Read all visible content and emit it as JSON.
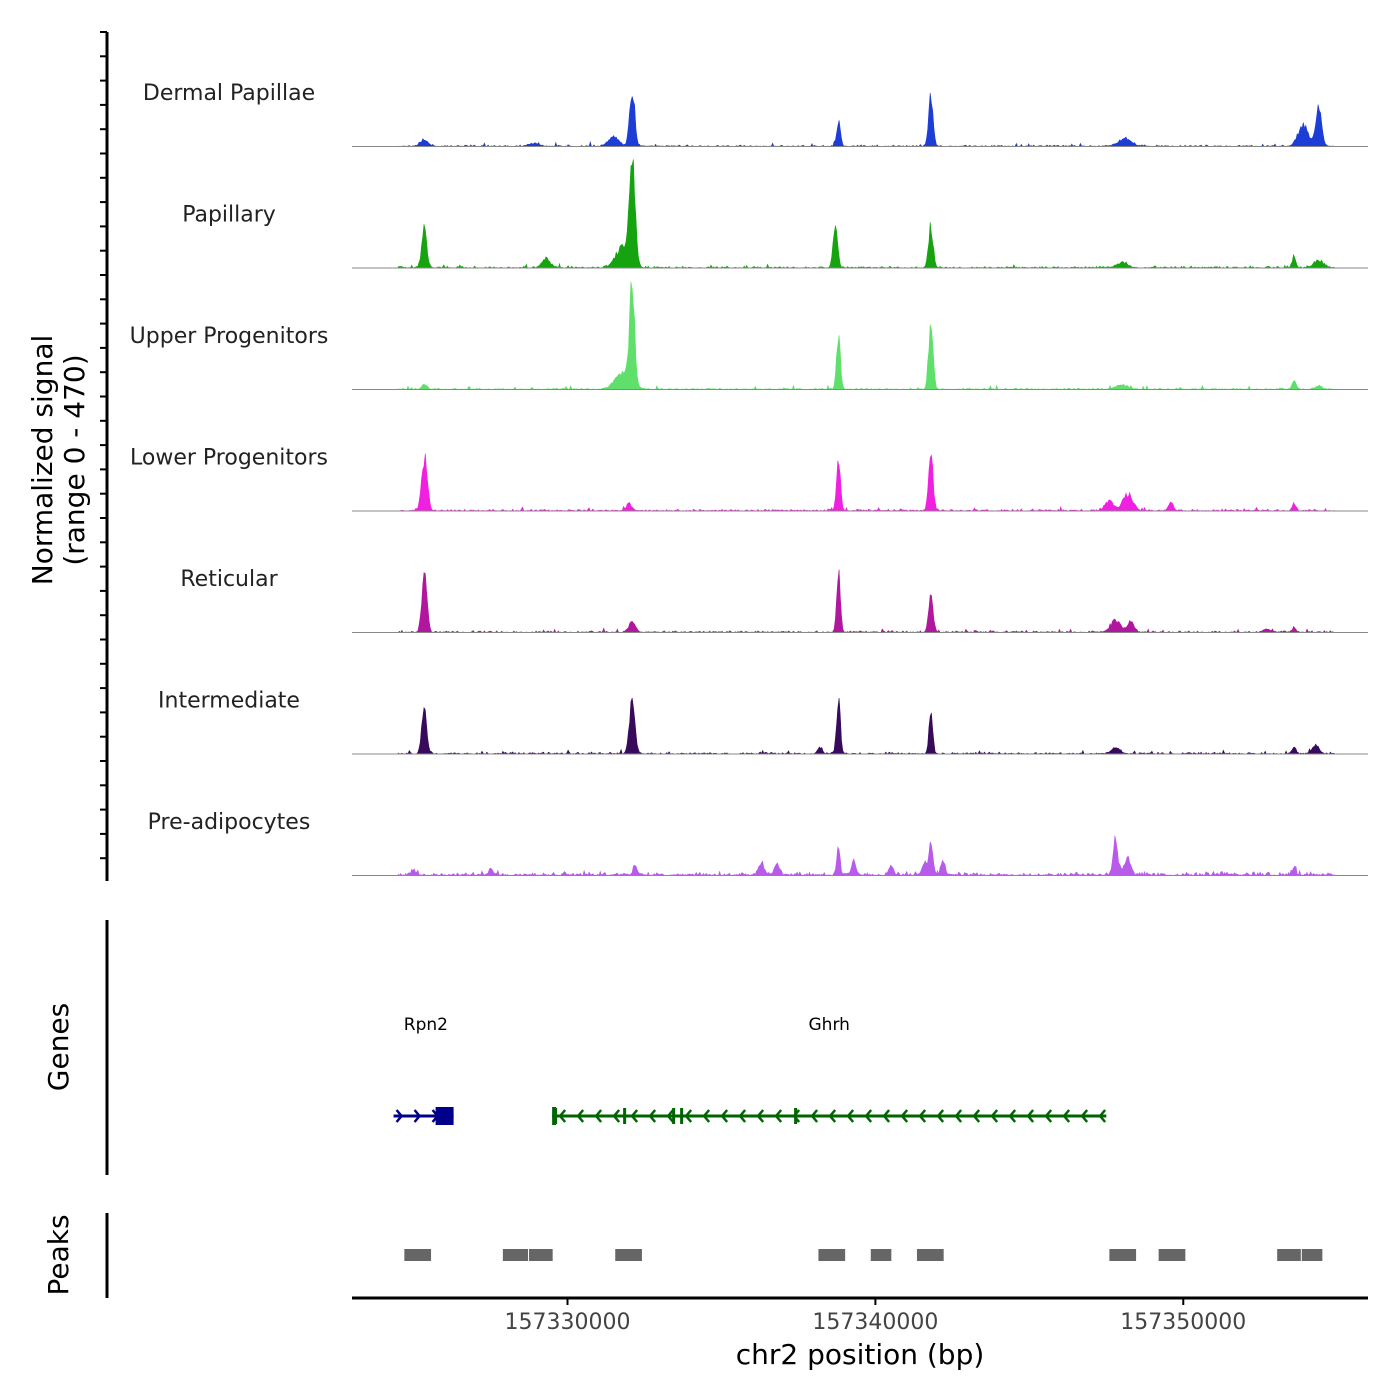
{
  "chart_data": {
    "type": "area",
    "title": "",
    "ylabel_line1": "Normalized signal",
    "ylabel_line2": "(range 0 - 470)",
    "ylim": [
      0,
      470
    ],
    "xlabel": "chr2 position (bp)",
    "xlim": [
      157323000,
      157356000
    ],
    "xticks": [
      157330000,
      157340000,
      157350000
    ],
    "xtick_labels": [
      "157330000",
      "157340000",
      "157350000"
    ],
    "genes_label": "Genes",
    "peaks_label": "Peaks",
    "tracks": [
      {
        "name": "Dermal Papillae",
        "color": "#1c3ed6",
        "baseline": 3,
        "peaks": [
          [
            157325350,
            25,
            130
          ],
          [
            157328900,
            12,
            160
          ],
          [
            157331500,
            40,
            160
          ],
          [
            157332100,
            250,
            80
          ],
          [
            157338800,
            105,
            60
          ],
          [
            157341800,
            210,
            70
          ],
          [
            157348100,
            30,
            220
          ],
          [
            157353900,
            90,
            170
          ],
          [
            157354400,
            160,
            90
          ]
        ]
      },
      {
        "name": "Papillary",
        "color": "#16a310",
        "baseline": 4,
        "peaks": [
          [
            157325350,
            170,
            80
          ],
          [
            157329300,
            40,
            120
          ],
          [
            157331800,
            90,
            220
          ],
          [
            157332100,
            450,
            90
          ],
          [
            157338700,
            175,
            70
          ],
          [
            157341800,
            175,
            70
          ],
          [
            157348000,
            22,
            160
          ],
          [
            157353600,
            50,
            60
          ],
          [
            157354400,
            30,
            150
          ]
        ]
      },
      {
        "name": "Upper Progenitors",
        "color": "#5ee06a",
        "baseline": 3,
        "peaks": [
          [
            157325350,
            22,
            80
          ],
          [
            157331800,
            70,
            250
          ],
          [
            157332100,
            405,
            80
          ],
          [
            157338800,
            220,
            60
          ],
          [
            157341800,
            275,
            70
          ],
          [
            157348000,
            18,
            200
          ],
          [
            157353600,
            40,
            60
          ],
          [
            157354400,
            14,
            100
          ]
        ]
      },
      {
        "name": "Lower Progenitors",
        "color": "#f020e0",
        "baseline": 4,
        "peaks": [
          [
            157325350,
            225,
            90
          ],
          [
            157332000,
            30,
            90
          ],
          [
            157338800,
            240,
            60
          ],
          [
            157341800,
            255,
            70
          ],
          [
            157347600,
            40,
            140
          ],
          [
            157348200,
            70,
            160
          ],
          [
            157349600,
            35,
            80
          ],
          [
            157353600,
            25,
            60
          ]
        ]
      },
      {
        "name": "Reticular",
        "color": "#b0169e",
        "baseline": 4,
        "peaks": [
          [
            157325350,
            260,
            80
          ],
          [
            157332100,
            45,
            100
          ],
          [
            157338800,
            255,
            60
          ],
          [
            157341800,
            155,
            70
          ],
          [
            157347800,
            50,
            160
          ],
          [
            157348300,
            50,
            100
          ],
          [
            157352700,
            15,
            100
          ],
          [
            157353600,
            20,
            60
          ]
        ]
      },
      {
        "name": "Intermediate",
        "color": "#380a5c",
        "baseline": 4,
        "peaks": [
          [
            157325350,
            200,
            80
          ],
          [
            157332100,
            210,
            90
          ],
          [
            157338200,
            28,
            70
          ],
          [
            157338800,
            230,
            60
          ],
          [
            157341800,
            160,
            60
          ],
          [
            157347800,
            25,
            140
          ],
          [
            157353600,
            30,
            60
          ],
          [
            157354300,
            35,
            120
          ]
        ]
      },
      {
        "name": "Pre-adipocytes",
        "color": "#b95bea",
        "baseline": 8,
        "peaks": [
          [
            157325000,
            20,
            80
          ],
          [
            157327500,
            30,
            60
          ],
          [
            157332200,
            35,
            70
          ],
          [
            157336300,
            50,
            90
          ],
          [
            157336800,
            40,
            90
          ],
          [
            157338800,
            130,
            50
          ],
          [
            157339300,
            60,
            70
          ],
          [
            157340500,
            35,
            70
          ],
          [
            157341600,
            45,
            80
          ],
          [
            157341800,
            140,
            60
          ],
          [
            157342200,
            60,
            60
          ],
          [
            157347800,
            140,
            80
          ],
          [
            157348200,
            70,
            100
          ],
          [
            157353600,
            30,
            60
          ]
        ]
      }
    ],
    "genes": [
      {
        "name": "Rpn2",
        "strand": "+",
        "color": "#00008b",
        "start": 157324350,
        "end": 157326300,
        "label_pos": 157325400
      },
      {
        "name": "Ghrh",
        "strand": "-",
        "color": "#006400",
        "start": 157329500,
        "end": 157347500,
        "label_pos": 157338500
      }
    ],
    "peak_regions": [
      [
        157324700,
        157325600
      ],
      [
        157327900,
        157328750
      ],
      [
        157328750,
        157329550
      ],
      [
        157331550,
        157332450
      ],
      [
        157338150,
        157339050
      ],
      [
        157339850,
        157340550
      ],
      [
        157341350,
        157342250
      ],
      [
        157347600,
        157348500
      ],
      [
        157349200,
        157350100
      ],
      [
        157353050,
        157353850
      ],
      [
        157353850,
        157354550
      ]
    ]
  }
}
